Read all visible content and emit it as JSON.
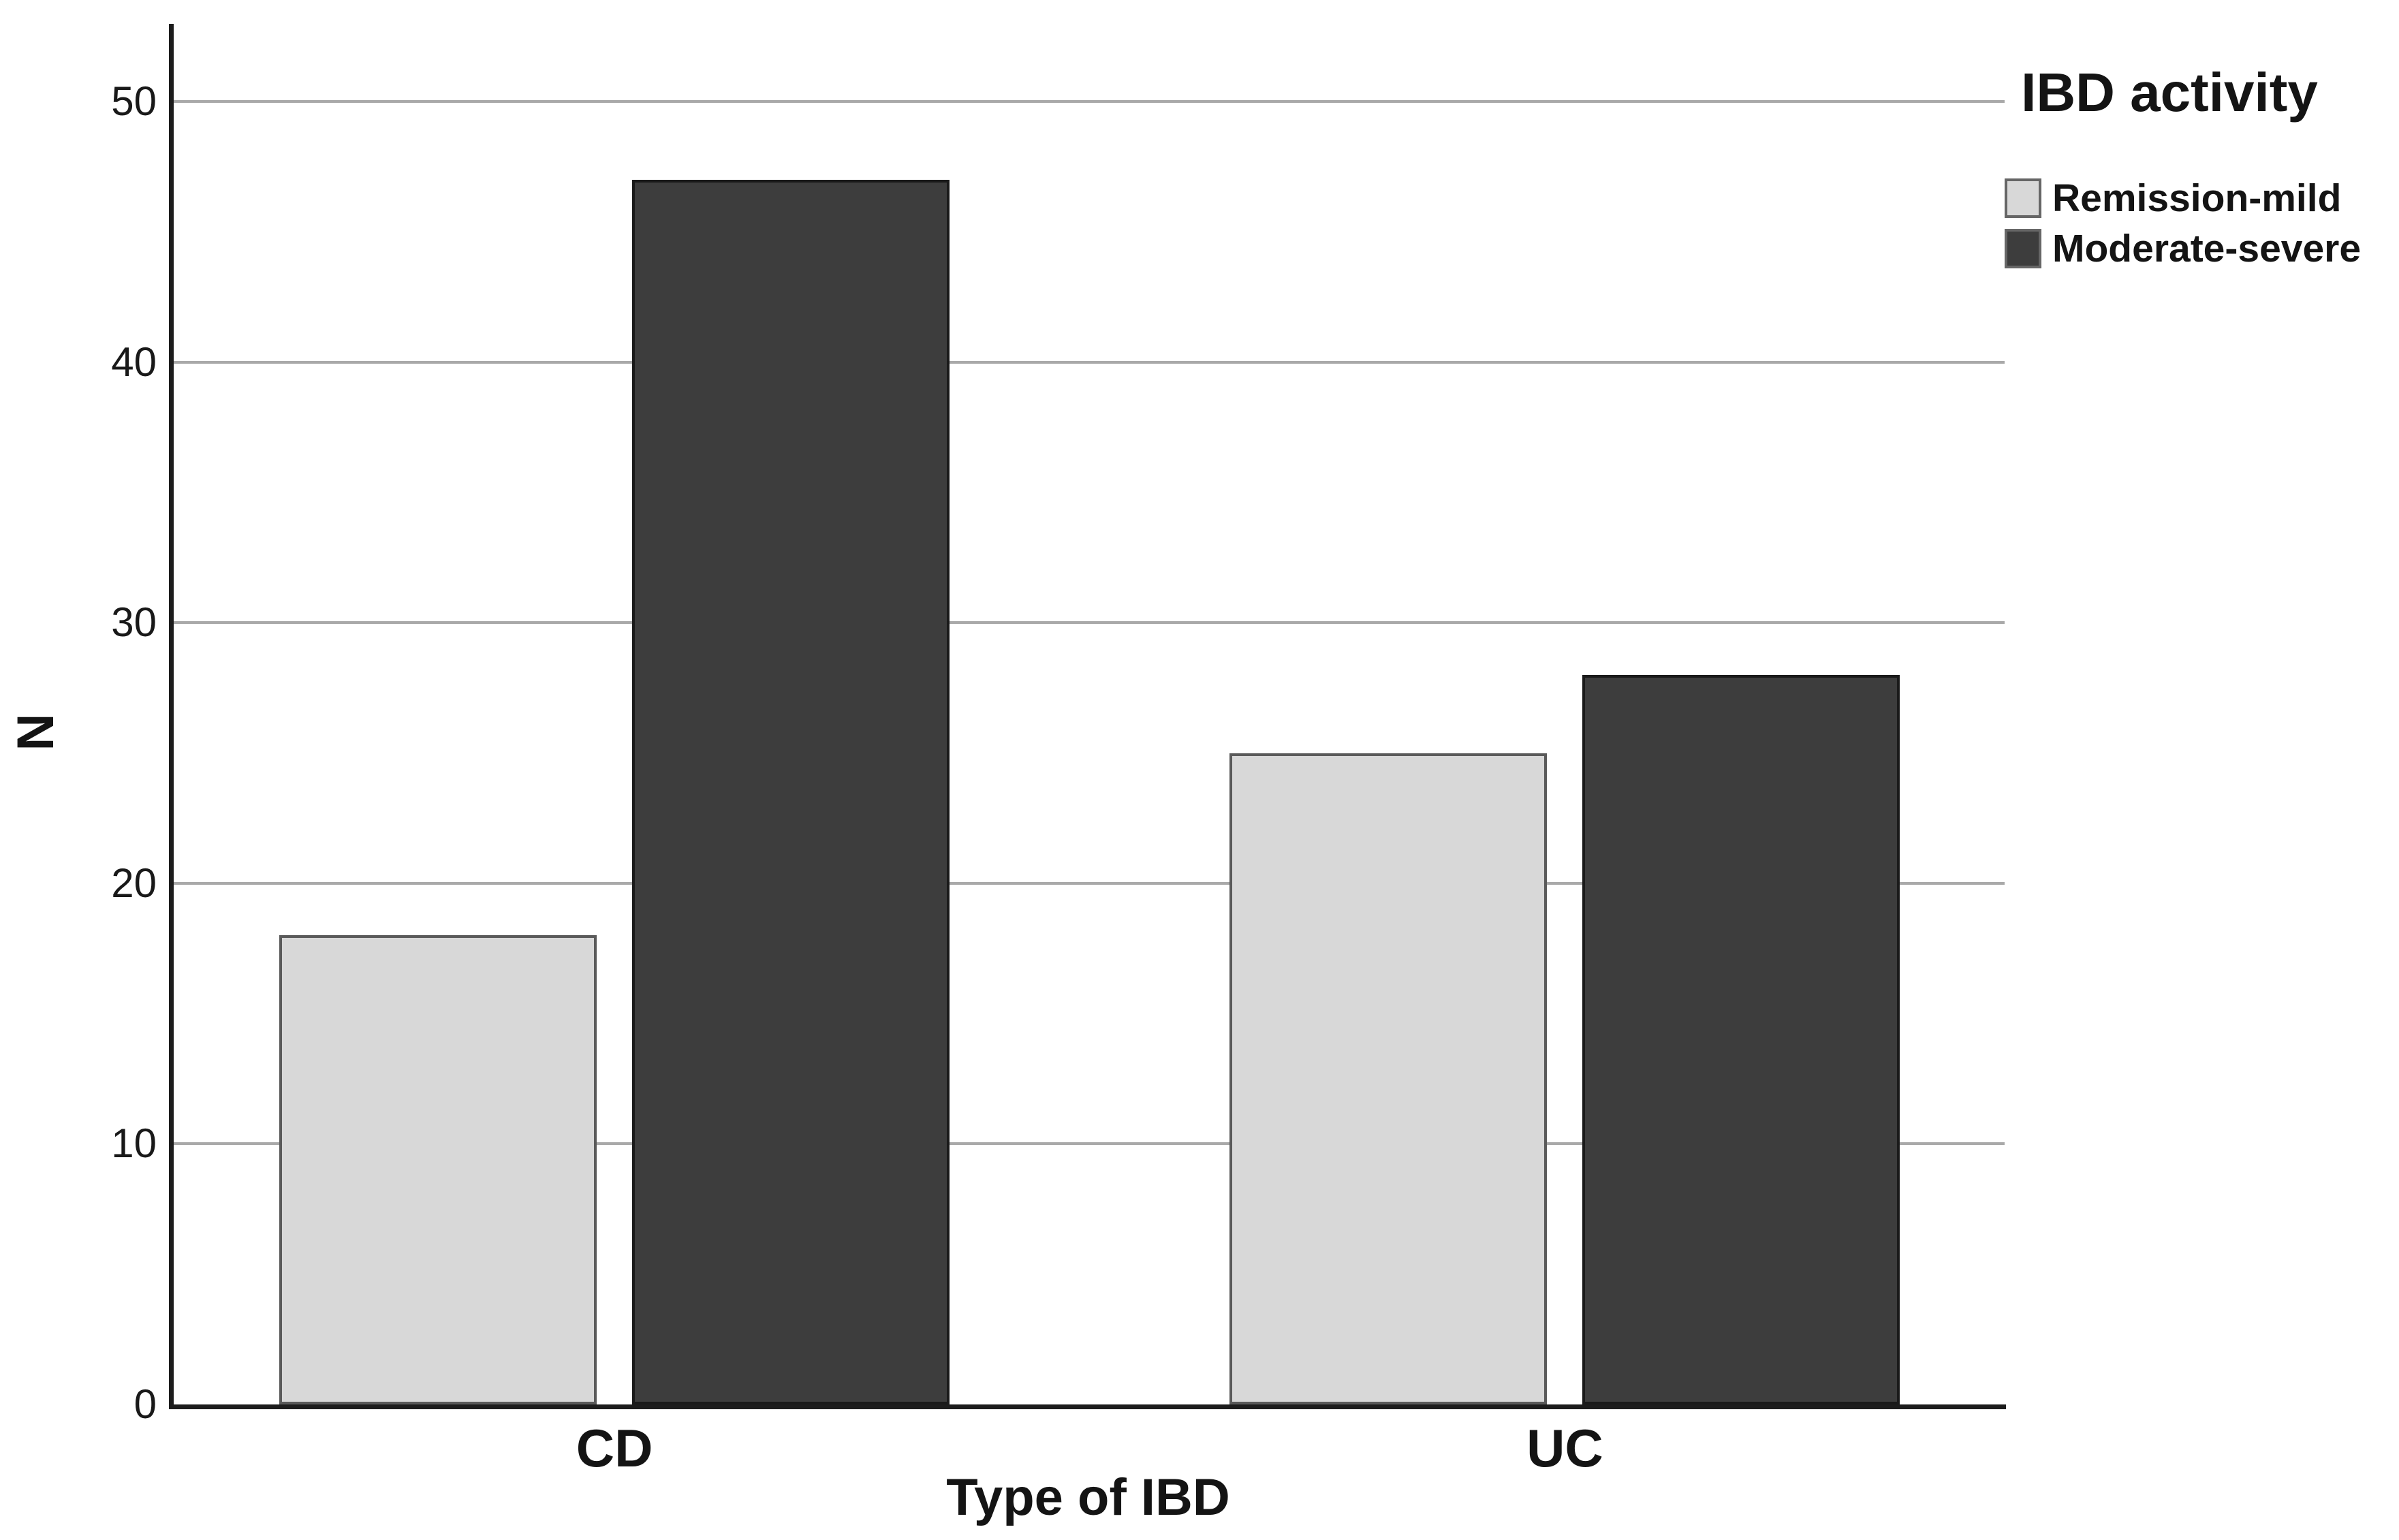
{
  "chart_data": {
    "type": "bar",
    "title": "",
    "categories": [
      "CD",
      "UC"
    ],
    "series": [
      {
        "name": "Remission-mild",
        "color": "#d8d8d8",
        "values": [
          18,
          25
        ]
      },
      {
        "name": "Moderate-severe",
        "color": "#3d3d3d",
        "values": [
          47,
          28
        ]
      }
    ],
    "xlabel": "Type of IBD",
    "ylabel": "N",
    "ylim": [
      0,
      50
    ],
    "yticks": [
      0,
      10,
      20,
      30,
      40,
      50
    ],
    "grid": true,
    "legend_title": "IBD activity",
    "legend_position": "top-right-outside",
    "colors": {
      "background": "#ffffff",
      "gridline": "#a9a9a9",
      "axis": "#1c1c1c",
      "text": "#141414",
      "bar_light_fill": "#d8d8d8",
      "bar_light_border": "#5a5a5a",
      "bar_dark_fill": "#3d3d3d",
      "bar_dark_border": "#1a1a1a"
    }
  }
}
